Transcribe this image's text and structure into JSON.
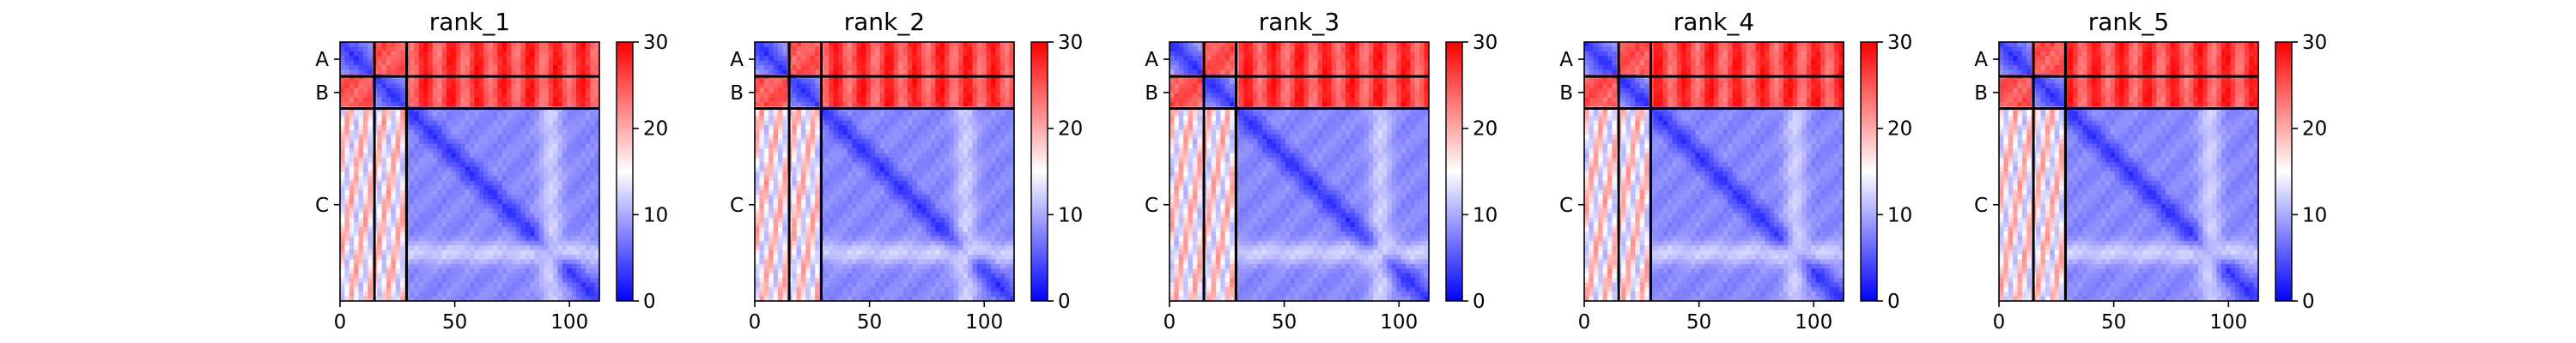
{
  "chart_data": {
    "type": "heatmap",
    "colormap": "bwr",
    "x_range": [
      0,
      113
    ],
    "x_ticks": [
      0,
      50,
      100
    ],
    "y_range_top_to_bottom": [
      0,
      113
    ],
    "chains": [
      {
        "label": "A",
        "start": 0,
        "end": 15
      },
      {
        "label": "B",
        "start": 15,
        "end": 29
      },
      {
        "label": "C",
        "start": 29,
        "end": 113
      }
    ],
    "panels": [
      {
        "title": "rank_1"
      },
      {
        "title": "rank_2"
      },
      {
        "title": "rank_3"
      },
      {
        "title": "rank_4"
      },
      {
        "title": "rank_5"
      }
    ],
    "colorbar": {
      "vmin": 0,
      "vmax": 30,
      "ticks": [
        0,
        10,
        20,
        30
      ],
      "colors": [
        "#0000ff",
        "#ffffff",
        "#ff0000"
      ]
    }
  }
}
